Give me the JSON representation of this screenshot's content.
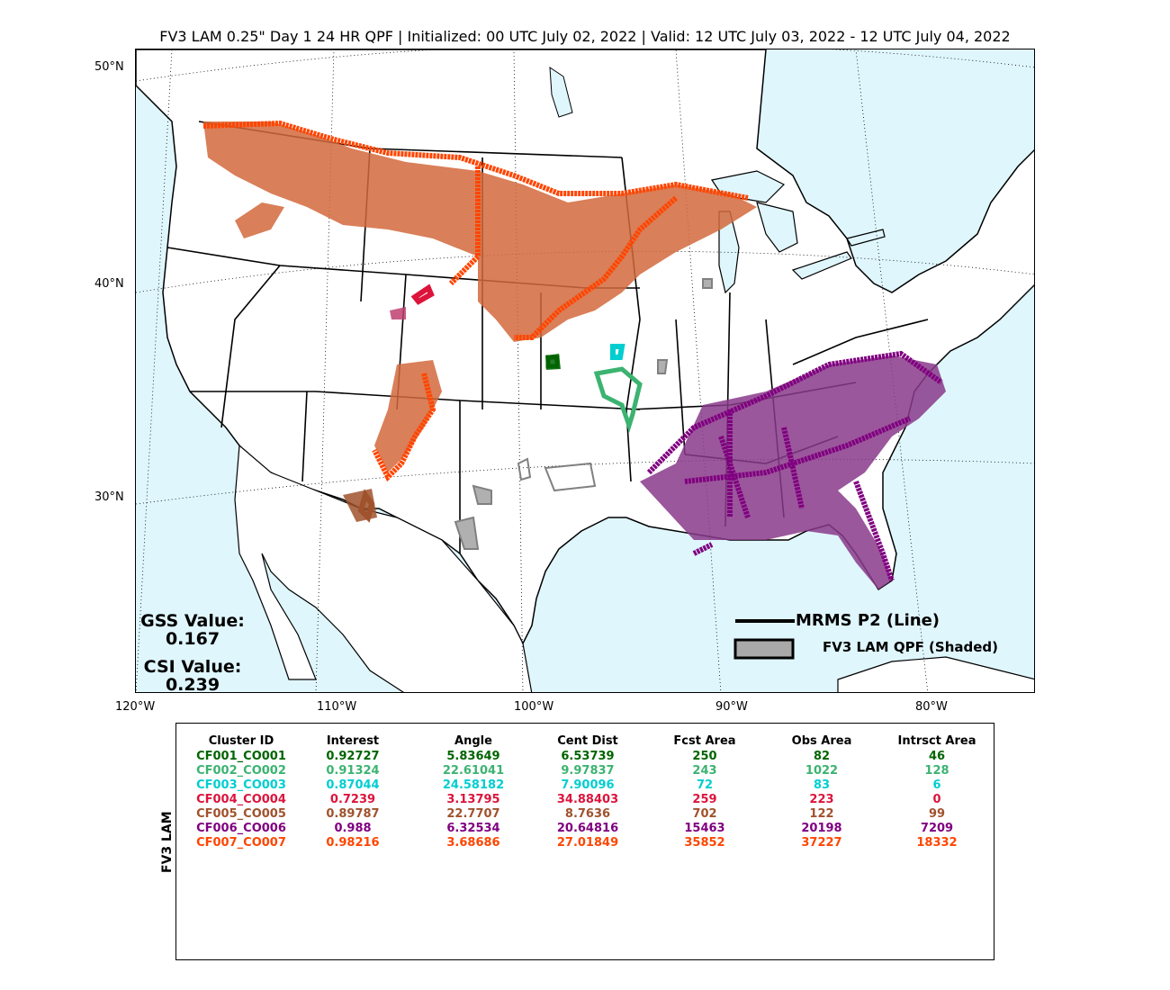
{
  "title": "FV3 LAM 0.25\" Day 1 24 HR QPF | Initialized: 00 UTC July 02, 2022 | Valid: 12 UTC July 03, 2022 - 12 UTC July 04, 2022",
  "lat_labels": [
    "50°N",
    "40°N",
    "30°N"
  ],
  "lon_labels": [
    "120°W",
    "110°W",
    "100°W",
    "90°W",
    "80°W"
  ],
  "scores": {
    "gss_label": "GSS Value:",
    "gss_value": "0.167",
    "csi_label": "CSI Value:",
    "csi_value": "0.239"
  },
  "legend": {
    "line_label": "MRMS P2 (Line)",
    "shaded_label": "FV3 LAM QPF (Shaded)"
  },
  "colors": {
    "water": "#dff6fd",
    "unmatched": "#b0b0b0",
    "CF001": "#006400",
    "CF002": "#3cb371",
    "CF003": "#00ced1",
    "CF004": "#dc143c",
    "CF005": "#a0522d",
    "CF006": "#800080",
    "CF007": "#ff4500"
  },
  "table": {
    "side_label": "FV3 LAM",
    "headers": [
      "Cluster ID",
      "Interest",
      "Angle",
      "Cent Dist",
      "Fcst Area",
      "Obs Area",
      "Intrsct Area"
    ],
    "rows": [
      {
        "id": "CF001_CO001",
        "interest": "0.92727",
        "angle": "5.83649",
        "cent_dist": "6.53739",
        "fcst": "250",
        "obs": "82",
        "intrsct": "46",
        "color": "#006400"
      },
      {
        "id": "CF002_CO002",
        "interest": "0.91324",
        "angle": "22.61041",
        "cent_dist": "9.97837",
        "fcst": "243",
        "obs": "1022",
        "intrsct": "128",
        "color": "#3cb371"
      },
      {
        "id": "CF003_CO003",
        "interest": "0.87044",
        "angle": "24.58182",
        "cent_dist": "7.90096",
        "fcst": "72",
        "obs": "83",
        "intrsct": "6",
        "color": "#00ced1"
      },
      {
        "id": "CF004_CO004",
        "interest": "0.7239",
        "angle": "3.13795",
        "cent_dist": "34.88403",
        "fcst": "259",
        "obs": "223",
        "intrsct": "0",
        "color": "#dc143c"
      },
      {
        "id": "CF005_CO005",
        "interest": "0.89787",
        "angle": "22.7707",
        "cent_dist": "8.7636",
        "fcst": "702",
        "obs": "122",
        "intrsct": "99",
        "color": "#a0522d"
      },
      {
        "id": "CF006_CO006",
        "interest": "0.988",
        "angle": "6.32534",
        "cent_dist": "20.64816",
        "fcst": "15463",
        "obs": "20198",
        "intrsct": "7209",
        "color": "#800080"
      },
      {
        "id": "CF007_CO007",
        "interest": "0.98216",
        "angle": "3.68686",
        "cent_dist": "27.01849",
        "fcst": "35852",
        "obs": "37227",
        "intrsct": "18332",
        "color": "#ff4500"
      }
    ]
  }
}
